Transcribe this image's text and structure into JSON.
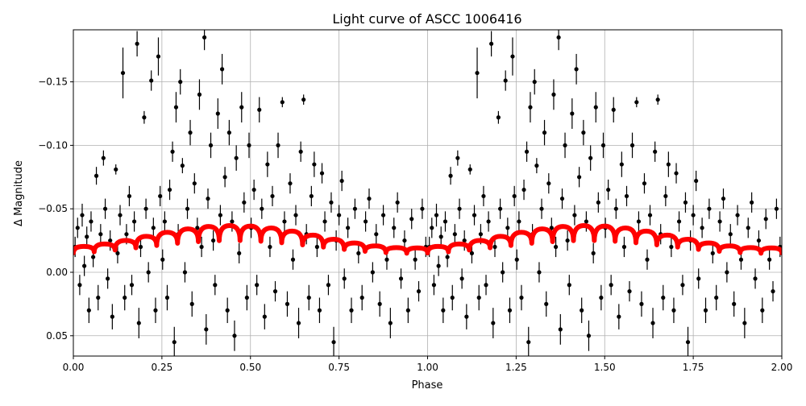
{
  "chart_data": {
    "type": "scatter",
    "title": "Light curve of ASCC 1006416",
    "xlabel": "Phase",
    "ylabel": "Δ Magnitude",
    "xlim": [
      0,
      2
    ],
    "ylim": [
      0.066,
      -0.191
    ],
    "y_inverted": true,
    "grid": true,
    "x_ticks": [
      "0.00",
      "0.25",
      "0.50",
      "0.75",
      "1.00",
      "1.25",
      "1.50",
      "1.75",
      "2.00"
    ],
    "x_tick_values": [
      0,
      0.25,
      0.5,
      0.75,
      1,
      1.25,
      1.5,
      1.75,
      2
    ],
    "y_ticks": [
      "−0.15",
      "−0.10",
      "−0.05",
      "0.00",
      "0.05"
    ],
    "y_tick_values": [
      -0.15,
      -0.1,
      -0.05,
      0,
      0.05
    ],
    "phase_repeat": 2,
    "data_color": "#000000",
    "model_color": "#ff0000",
    "observations": [
      [
        0.005,
        -0.02,
        0.008
      ],
      [
        0.012,
        -0.035,
        0.008
      ],
      [
        0.018,
        0.01,
        0.008
      ],
      [
        0.025,
        -0.045,
        0.009
      ],
      [
        0.031,
        -0.005,
        0.008
      ],
      [
        0.038,
        -0.028,
        0.008
      ],
      [
        0.044,
        0.03,
        0.01
      ],
      [
        0.05,
        -0.04,
        0.008
      ],
      [
        0.056,
        -0.012,
        0.008
      ],
      [
        0.065,
        -0.076,
        0.007
      ],
      [
        0.07,
        0.02,
        0.01
      ],
      [
        0.077,
        -0.03,
        0.008
      ],
      [
        0.085,
        -0.09,
        0.006
      ],
      [
        0.09,
        -0.05,
        0.008
      ],
      [
        0.097,
        0.005,
        0.008
      ],
      [
        0.104,
        -0.025,
        0.008
      ],
      [
        0.11,
        0.035,
        0.01
      ],
      [
        0.12,
        -0.081,
        0.004
      ],
      [
        0.125,
        -0.015,
        0.008
      ],
      [
        0.132,
        -0.045,
        0.008
      ],
      [
        0.14,
        -0.157,
        0.02
      ],
      [
        0.145,
        0.02,
        0.01
      ],
      [
        0.15,
        -0.03,
        0.008
      ],
      [
        0.158,
        -0.06,
        0.008
      ],
      [
        0.165,
        0.01,
        0.008
      ],
      [
        0.172,
        -0.04,
        0.008
      ],
      [
        0.18,
        -0.18,
        0.01
      ],
      [
        0.185,
        0.04,
        0.012
      ],
      [
        0.19,
        -0.02,
        0.008
      ],
      [
        0.2,
        -0.122,
        0.005
      ],
      [
        0.205,
        -0.05,
        0.008
      ],
      [
        0.212,
        0.0,
        0.008
      ],
      [
        0.22,
        -0.151,
        0.008
      ],
      [
        0.226,
        -0.035,
        0.008
      ],
      [
        0.232,
        0.03,
        0.01
      ],
      [
        0.24,
        -0.17,
        0.015
      ],
      [
        0.245,
        -0.06,
        0.008
      ],
      [
        0.252,
        -0.01,
        0.008
      ],
      [
        0.258,
        -0.04,
        0.008
      ],
      [
        0.265,
        0.02,
        0.01
      ],
      [
        0.272,
        -0.065,
        0.008
      ],
      [
        0.28,
        -0.095,
        0.008
      ],
      [
        0.285,
        0.055,
        0.012
      ],
      [
        0.29,
        -0.13,
        0.012
      ],
      [
        0.296,
        -0.03,
        0.008
      ],
      [
        0.302,
        -0.15,
        0.01
      ],
      [
        0.308,
        -0.084,
        0.006
      ],
      [
        0.315,
        0.0,
        0.008
      ],
      [
        0.322,
        -0.05,
        0.008
      ],
      [
        0.33,
        -0.11,
        0.01
      ],
      [
        0.335,
        0.025,
        0.01
      ],
      [
        0.342,
        -0.07,
        0.008
      ],
      [
        0.35,
        -0.035,
        0.008
      ],
      [
        0.356,
        -0.14,
        0.012
      ],
      [
        0.362,
        -0.02,
        0.008
      ],
      [
        0.37,
        -0.185,
        0.01
      ],
      [
        0.375,
        0.045,
        0.012
      ],
      [
        0.38,
        -0.058,
        0.008
      ],
      [
        0.388,
        -0.1,
        0.01
      ],
      [
        0.395,
        -0.025,
        0.008
      ],
      [
        0.4,
        0.01,
        0.008
      ],
      [
        0.408,
        -0.125,
        0.012
      ],
      [
        0.415,
        -0.045,
        0.008
      ],
      [
        0.42,
        -0.16,
        0.012
      ],
      [
        0.428,
        -0.075,
        0.008
      ],
      [
        0.435,
        0.03,
        0.01
      ],
      [
        0.44,
        -0.11,
        0.01
      ],
      [
        0.448,
        -0.04,
        0.008
      ],
      [
        0.455,
        0.05,
        0.012
      ],
      [
        0.46,
        -0.09,
        0.01
      ],
      [
        0.468,
        -0.015,
        0.008
      ],
      [
        0.475,
        -0.13,
        0.012
      ],
      [
        0.482,
        -0.055,
        0.008
      ],
      [
        0.49,
        0.02,
        0.01
      ],
      [
        0.496,
        -0.1,
        0.01
      ],
      [
        0.502,
        -0.035,
        0.008
      ],
      [
        0.51,
        -0.065,
        0.008
      ],
      [
        0.518,
        0.01,
        0.008
      ],
      [
        0.525,
        -0.128,
        0.01
      ],
      [
        0.532,
        -0.05,
        0.008
      ],
      [
        0.54,
        0.035,
        0.01
      ],
      [
        0.548,
        -0.085,
        0.01
      ],
      [
        0.555,
        -0.02,
        0.008
      ],
      [
        0.562,
        -0.06,
        0.008
      ],
      [
        0.57,
        0.015,
        0.008
      ],
      [
        0.578,
        -0.1,
        0.01
      ],
      [
        0.59,
        -0.134,
        0.004
      ],
      [
        0.596,
        -0.04,
        0.008
      ],
      [
        0.604,
        0.025,
        0.01
      ],
      [
        0.612,
        -0.07,
        0.008
      ],
      [
        0.62,
        -0.01,
        0.008
      ],
      [
        0.628,
        -0.045,
        0.008
      ],
      [
        0.636,
        0.04,
        0.012
      ],
      [
        0.642,
        -0.095,
        0.008
      ],
      [
        0.65,
        -0.136,
        0.004
      ],
      [
        0.658,
        -0.03,
        0.008
      ],
      [
        0.665,
        0.02,
        0.01
      ],
      [
        0.672,
        -0.06,
        0.008
      ],
      [
        0.68,
        -0.085,
        0.01
      ],
      [
        0.688,
        -0.02,
        0.008
      ],
      [
        0.695,
        0.03,
        0.01
      ],
      [
        0.702,
        -0.078,
        0.008
      ],
      [
        0.71,
        -0.04,
        0.008
      ],
      [
        0.72,
        0.01,
        0.008
      ],
      [
        0.728,
        -0.055,
        0.008
      ],
      [
        0.735,
        0.055,
        0.012
      ],
      [
        0.742,
        -0.025,
        0.008
      ],
      [
        0.75,
        -0.045,
        0.008
      ],
      [
        0.758,
        -0.072,
        0.008
      ],
      [
        0.765,
        0.005,
        0.008
      ],
      [
        0.775,
        -0.035,
        0.008
      ],
      [
        0.785,
        0.03,
        0.01
      ],
      [
        0.795,
        -0.05,
        0.008
      ],
      [
        0.805,
        -0.015,
        0.008
      ],
      [
        0.815,
        0.02,
        0.01
      ],
      [
        0.825,
        -0.04,
        0.008
      ],
      [
        0.835,
        -0.058,
        0.008
      ],
      [
        0.845,
        0.0,
        0.008
      ],
      [
        0.855,
        -0.03,
        0.008
      ],
      [
        0.865,
        0.025,
        0.01
      ],
      [
        0.875,
        -0.045,
        0.008
      ],
      [
        0.885,
        -0.01,
        0.008
      ],
      [
        0.895,
        0.04,
        0.012
      ],
      [
        0.905,
        -0.035,
        0.008
      ],
      [
        0.915,
        -0.055,
        0.008
      ],
      [
        0.925,
        0.005,
        0.008
      ],
      [
        0.935,
        -0.025,
        0.008
      ],
      [
        0.945,
        0.03,
        0.01
      ],
      [
        0.955,
        -0.042,
        0.008
      ],
      [
        0.965,
        -0.01,
        0.008
      ],
      [
        0.975,
        0.015,
        0.008
      ],
      [
        0.985,
        -0.05,
        0.008
      ],
      [
        0.995,
        -0.02,
        0.008
      ]
    ],
    "model": {
      "phase": [
        0,
        0.0294,
        0.0588,
        0.0882,
        0.1176,
        0.1471,
        0.1765,
        0.2059,
        0.2353,
        0.2647,
        0.2941,
        0.3235,
        0.3529,
        0.3824,
        0.4118,
        0.4412,
        0.4706,
        0.5,
        0.5294,
        0.5588,
        0.5882,
        0.6176,
        0.6471,
        0.6765,
        0.7059,
        0.7353,
        0.7647,
        0.7941,
        0.8235,
        0.8529,
        0.8824,
        0.9118,
        0.9412,
        0.9706,
        1.0
      ],
      "magnitude": [
        -0.0152,
        -0.0204,
        -0.0161,
        -0.0223,
        -0.0175,
        -0.0251,
        -0.0193,
        -0.0283,
        -0.0211,
        -0.0315,
        -0.0228,
        -0.0342,
        -0.0241,
        -0.0361,
        -0.0249,
        -0.0368,
        -0.025,
        -0.0364,
        -0.0244,
        -0.0349,
        -0.0232,
        -0.0324,
        -0.0216,
        -0.0293,
        -0.0198,
        -0.026,
        -0.018,
        -0.0231,
        -0.0165,
        -0.0208,
        -0.0155,
        -0.0194,
        -0.015,
        -0.0192,
        -0.0152
      ]
    }
  }
}
